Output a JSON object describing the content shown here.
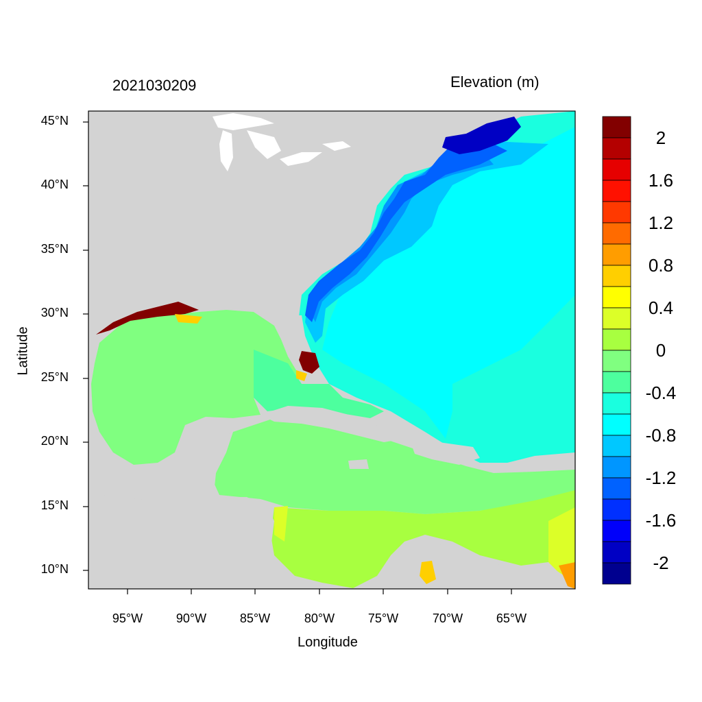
{
  "map": {
    "date": "2021030209",
    "units": "Elevation (m)",
    "x_axis_title": "Longitude",
    "y_axis_title": "Latitude",
    "lon_ticks": [
      "95°W",
      "90°W",
      "85°W",
      "80°W",
      "75°W",
      "70°W",
      "65°W"
    ],
    "lat_ticks": [
      "45°N",
      "40°N",
      "35°N",
      "30°N",
      "25°N",
      "20°N",
      "15°N",
      "10°N"
    ],
    "land_color": "#d3d3d3",
    "lake_color": "#ffffff"
  },
  "colorbar": {
    "colors": [
      "#00008f",
      "#0000c4",
      "#0000fa",
      "#0030ff",
      "#0062ff",
      "#0096ff",
      "#00c8ff",
      "#00ffff",
      "#1affdf",
      "#4dff9e",
      "#80ff80",
      "#a8ff40",
      "#dcff28",
      "#ffff00",
      "#ffcf00",
      "#ff9d00",
      "#ff6b00",
      "#ff3900",
      "#ff1100",
      "#e60000",
      "#b40000",
      "#820000"
    ],
    "tick_labels": [
      "2",
      "1.6",
      "1.2",
      "0.8",
      "0.4",
      "0",
      "-0.4",
      "-0.8",
      "-1.2",
      "-1.6",
      "-2"
    ]
  }
}
